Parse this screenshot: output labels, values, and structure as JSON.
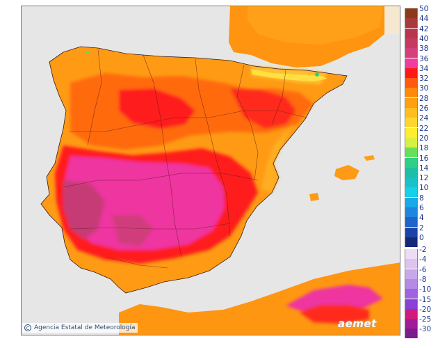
{
  "map": {
    "credit": "Agencia Estatal de Meteorología",
    "credit_icon": "copyright-icon",
    "brand": "aemet"
  },
  "legend": {
    "positive": [
      {
        "label": "50",
        "color": "#8b3a1a"
      },
      {
        "label": "44",
        "color": "#a83a3a"
      },
      {
        "label": "42",
        "color": "#b8364e"
      },
      {
        "label": "40",
        "color": "#c63a62"
      },
      {
        "label": "38",
        "color": "#d3407a"
      },
      {
        "label": "36",
        "color": "#f03ca0"
      },
      {
        "label": "34",
        "color": "#ff1a1a"
      },
      {
        "label": "32",
        "color": "#ff5a10"
      },
      {
        "label": "30",
        "color": "#ff8a0a"
      },
      {
        "label": "28",
        "color": "#ffa010"
      },
      {
        "label": "26",
        "color": "#ffbe20"
      },
      {
        "label": "24",
        "color": "#ffd630"
      },
      {
        "label": "22",
        "color": "#ffee30"
      },
      {
        "label": "20",
        "color": "#d8f040"
      },
      {
        "label": "18",
        "color": "#66e05a"
      },
      {
        "label": "16",
        "color": "#2ecf86"
      },
      {
        "label": "14",
        "color": "#1ebfa6"
      },
      {
        "label": "12",
        "color": "#18c2c8"
      },
      {
        "label": "10",
        "color": "#16cfea"
      },
      {
        "label": "8",
        "color": "#1aa8e8"
      },
      {
        "label": "6",
        "color": "#1f86dd"
      },
      {
        "label": "4",
        "color": "#1f64c8"
      },
      {
        "label": "2",
        "color": "#1c44a8"
      },
      {
        "label": "0",
        "color": "#142a78"
      }
    ],
    "negative": [
      {
        "label": "-2",
        "color": "#ecdcf4"
      },
      {
        "label": "-4",
        "color": "#dcc4ef"
      },
      {
        "label": "-6",
        "color": "#c9a8ea"
      },
      {
        "label": "-8",
        "color": "#b58ae6"
      },
      {
        "label": "-10",
        "color": "#9f63e0"
      },
      {
        "label": "-15",
        "color": "#8a3fd6"
      },
      {
        "label": "-20",
        "color": "#d01c7c"
      },
      {
        "label": "-25",
        "color": "#a21c9a"
      },
      {
        "label": "-30",
        "color": "#7a1c8e"
      }
    ]
  }
}
